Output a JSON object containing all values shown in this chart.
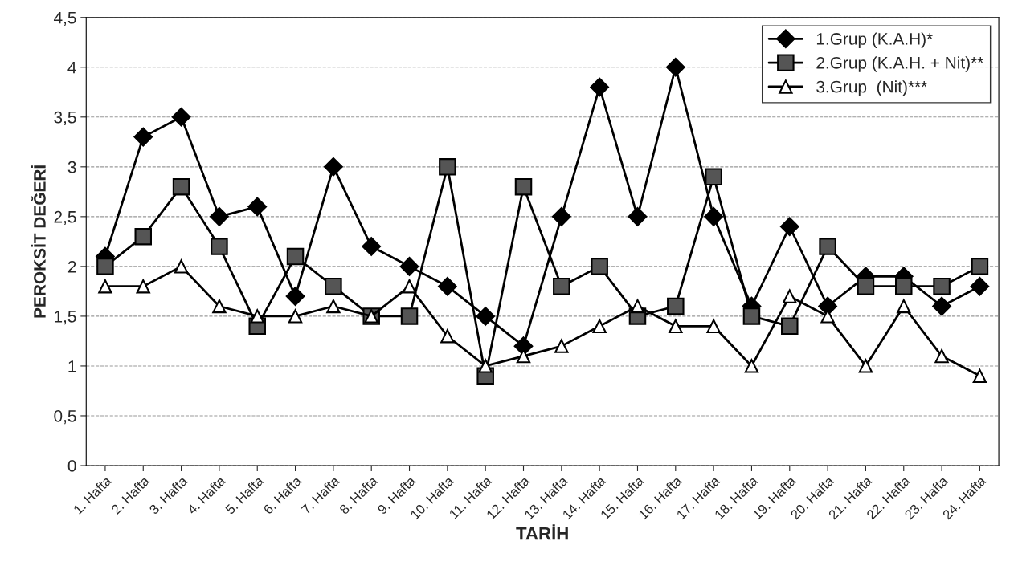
{
  "chart_data": {
    "type": "line",
    "xlabel": "TARİH",
    "ylabel": "PEROKSİT DEĞERİ",
    "categories": [
      "1. Hafta",
      "2. Hafta",
      "3. Hafta",
      "4. Hafta",
      "5. Hafta",
      "6. Hafta",
      "7. Hafta",
      "8. Hafta",
      "9. Hafta",
      "10. Hafta",
      "11. Hafta",
      "12. Hafta",
      "13. Hafta",
      "14. Hafta",
      "15. Hafta",
      "16. Hafta",
      "17. Hafta",
      "18. Hafta",
      "19. Hafta",
      "20. Hafta",
      "21. Hafta",
      "22. Hafta",
      "23. Hafta",
      "24. Hafta"
    ],
    "series": [
      {
        "name": "1.Grup (K.A.H)*",
        "color": "#000000",
        "marker": "diamond",
        "values": [
          2.1,
          3.3,
          3.5,
          2.5,
          2.6,
          1.7,
          3.0,
          2.2,
          2.0,
          1.8,
          1.5,
          1.2,
          2.5,
          3.8,
          2.5,
          4.0,
          2.5,
          1.6,
          2.4,
          1.6,
          1.9,
          1.9,
          1.6,
          1.8
        ]
      },
      {
        "name": "2.Grup (K.A.H. + Nit)**",
        "color": "#555555",
        "marker": "square",
        "values": [
          2.0,
          2.3,
          2.8,
          2.2,
          1.4,
          2.1,
          1.8,
          1.5,
          1.5,
          3.0,
          0.9,
          2.8,
          1.8,
          2.0,
          1.5,
          1.6,
          2.9,
          1.5,
          1.4,
          2.2,
          1.8,
          1.8,
          1.8,
          2.0
        ]
      },
      {
        "name": "3.Grup  (Nit)***",
        "color": "#ffffff",
        "marker": "triangle",
        "values": [
          1.8,
          1.8,
          2.0,
          1.6,
          1.5,
          1.5,
          1.6,
          1.5,
          1.8,
          1.3,
          1.0,
          1.1,
          1.2,
          1.4,
          1.6,
          1.4,
          1.4,
          1.0,
          1.7,
          1.5,
          1.0,
          1.6,
          1.1,
          0.9
        ]
      }
    ],
    "ylim": [
      0,
      4.5
    ],
    "yticks": [
      {
        "value": 0,
        "label": "0"
      },
      {
        "value": 0.5,
        "label": "0,5"
      },
      {
        "value": 1,
        "label": "1"
      },
      {
        "value": 1.5,
        "label": "1,5"
      },
      {
        "value": 2,
        "label": "2"
      },
      {
        "value": 2.5,
        "label": "2,5"
      },
      {
        "value": 3,
        "label": "3"
      },
      {
        "value": 3.5,
        "label": "3,5"
      },
      {
        "value": 4,
        "label": "4"
      },
      {
        "value": 4.5,
        "label": "4,5"
      }
    ],
    "grid": "y",
    "legend": "top right",
    "line_style": "solid"
  }
}
